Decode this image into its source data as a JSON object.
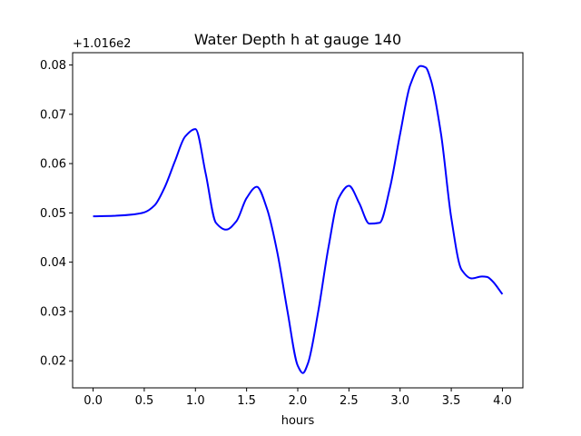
{
  "chart_data": {
    "type": "line",
    "title": "Water Depth h at gauge 140",
    "xlabel": "hours",
    "ylabel": "",
    "y_offset_label": "+1.016e2",
    "y_offset": 101.6,
    "xlim": [
      -0.2,
      4.2
    ],
    "ylim": [
      0.0145,
      0.0825
    ],
    "x_ticks": [
      0.0,
      0.5,
      1.0,
      1.5,
      2.0,
      2.5,
      3.0,
      3.5,
      4.0
    ],
    "x_tick_labels": [
      "0.0",
      "0.5",
      "1.0",
      "1.5",
      "2.0",
      "2.5",
      "3.0",
      "3.5",
      "4.0"
    ],
    "y_ticks": [
      0.02,
      0.03,
      0.04,
      0.05,
      0.06,
      0.07,
      0.08
    ],
    "y_tick_labels": [
      "0.02",
      "0.03",
      "0.04",
      "0.05",
      "0.06",
      "0.07",
      "0.08"
    ],
    "grid": false,
    "legend": "none",
    "series": [
      {
        "color": "#0000ff",
        "x": [
          0.0,
          0.2,
          0.4,
          0.5,
          0.6,
          0.7,
          0.8,
          0.9,
          1.0,
          1.1,
          1.2,
          1.3,
          1.4,
          1.5,
          1.6,
          1.7,
          1.8,
          1.9,
          2.0,
          2.05,
          2.1,
          2.2,
          2.3,
          2.4,
          2.5,
          2.6,
          2.7,
          2.8,
          2.9,
          3.0,
          3.1,
          3.2,
          3.25,
          3.3,
          3.4,
          3.5,
          3.6,
          3.7,
          3.8,
          3.85,
          3.9,
          4.0
        ],
        "y": [
          0.0493,
          0.0494,
          0.0497,
          0.0501,
          0.0515,
          0.0552,
          0.0605,
          0.0655,
          0.067,
          0.058,
          0.048,
          0.0466,
          0.0483,
          0.053,
          0.0553,
          0.0508,
          0.042,
          0.03,
          0.019,
          0.0175,
          0.0195,
          0.03,
          0.043,
          0.053,
          0.0555,
          0.052,
          0.0478,
          0.048,
          0.055,
          0.066,
          0.076,
          0.0798,
          0.0795,
          0.077,
          0.066,
          0.049,
          0.0385,
          0.0367,
          0.0371,
          0.037,
          0.0362,
          0.0335
        ]
      }
    ]
  }
}
